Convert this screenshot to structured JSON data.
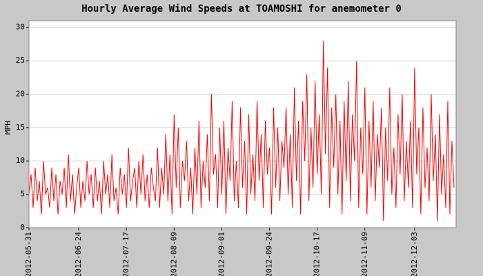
{
  "chart_data": {
    "type": "line",
    "title": "Hourly Average Wind Speeds at TOAMOSHI for anemometer 0",
    "y_label": "MPH",
    "color": "#ff0000",
    "grid": true,
    "xlim": [
      "2012-05-31",
      "2012-12-23"
    ],
    "xticks": [
      "2012-05-31",
      "2012-06-24",
      "2012-07-17",
      "2012-08-09",
      "2012-09-01",
      "2012-09-24",
      "2012-10-17",
      "2012-11-09",
      "2012-12-03"
    ],
    "ylim": [
      0,
      31
    ],
    "yticks": [
      0,
      5,
      10,
      15,
      20,
      25,
      30
    ],
    "x": [
      "2012-05-31",
      "2012-06-01",
      "2012-06-02",
      "2012-06-03",
      "2012-06-04",
      "2012-06-05",
      "2012-06-06",
      "2012-06-07",
      "2012-06-08",
      "2012-06-09",
      "2012-06-10",
      "2012-06-11",
      "2012-06-12",
      "2012-06-13",
      "2012-06-14",
      "2012-06-15",
      "2012-06-16",
      "2012-06-17",
      "2012-06-18",
      "2012-06-19",
      "2012-06-20",
      "2012-06-21",
      "2012-06-22",
      "2012-06-23",
      "2012-06-24",
      "2012-06-25",
      "2012-06-26",
      "2012-06-27",
      "2012-06-28",
      "2012-06-29",
      "2012-06-30",
      "2012-07-01",
      "2012-07-02",
      "2012-07-03",
      "2012-07-04",
      "2012-07-05",
      "2012-07-06",
      "2012-07-07",
      "2012-07-08",
      "2012-07-09",
      "2012-07-10",
      "2012-07-11",
      "2012-07-12",
      "2012-07-13",
      "2012-07-14",
      "2012-07-15",
      "2012-07-16",
      "2012-07-17",
      "2012-07-18",
      "2012-07-19",
      "2012-07-20",
      "2012-07-21",
      "2012-07-22",
      "2012-07-23",
      "2012-07-24",
      "2012-07-25",
      "2012-07-26",
      "2012-07-27",
      "2012-07-28",
      "2012-07-29",
      "2012-07-30",
      "2012-07-31",
      "2012-08-01",
      "2012-08-02",
      "2012-08-03",
      "2012-08-04",
      "2012-08-05",
      "2012-08-06",
      "2012-08-07",
      "2012-08-08",
      "2012-08-09",
      "2012-08-10",
      "2012-08-11",
      "2012-08-12",
      "2012-08-13",
      "2012-08-14",
      "2012-08-15",
      "2012-08-16",
      "2012-08-17",
      "2012-08-18",
      "2012-08-19",
      "2012-08-20",
      "2012-08-21",
      "2012-08-22",
      "2012-08-23",
      "2012-08-24",
      "2012-08-25",
      "2012-08-26",
      "2012-08-27",
      "2012-08-28",
      "2012-08-29",
      "2012-08-30",
      "2012-08-31",
      "2012-09-01",
      "2012-09-02",
      "2012-09-03",
      "2012-09-04",
      "2012-09-05",
      "2012-09-06",
      "2012-09-07",
      "2012-09-08",
      "2012-09-09",
      "2012-09-10",
      "2012-09-11",
      "2012-09-12",
      "2012-09-13",
      "2012-09-14",
      "2012-09-15",
      "2012-09-16",
      "2012-09-17",
      "2012-09-18",
      "2012-09-19",
      "2012-09-20",
      "2012-09-21",
      "2012-09-22",
      "2012-09-23",
      "2012-09-24",
      "2012-09-25",
      "2012-09-26",
      "2012-09-27",
      "2012-09-28",
      "2012-09-29",
      "2012-09-30",
      "2012-10-01",
      "2012-10-02",
      "2012-10-03",
      "2012-10-04",
      "2012-10-05",
      "2012-10-06",
      "2012-10-07",
      "2012-10-08",
      "2012-10-09",
      "2012-10-10",
      "2012-10-11",
      "2012-10-12",
      "2012-10-13",
      "2012-10-14",
      "2012-10-15",
      "2012-10-16",
      "2012-10-17",
      "2012-10-18",
      "2012-10-19",
      "2012-10-20",
      "2012-10-21",
      "2012-10-22",
      "2012-10-23",
      "2012-10-24",
      "2012-10-25",
      "2012-10-26",
      "2012-10-27",
      "2012-10-28",
      "2012-10-29",
      "2012-10-30",
      "2012-10-31",
      "2012-11-01",
      "2012-11-02",
      "2012-11-03",
      "2012-11-04",
      "2012-11-05",
      "2012-11-06",
      "2012-11-07",
      "2012-11-08",
      "2012-11-09",
      "2012-11-10",
      "2012-11-11",
      "2012-11-12",
      "2012-11-13",
      "2012-11-14",
      "2012-11-15",
      "2012-11-16",
      "2012-11-17",
      "2012-11-18",
      "2012-11-19",
      "2012-11-20",
      "2012-11-21",
      "2012-11-22",
      "2012-11-23",
      "2012-11-24",
      "2012-11-25",
      "2012-11-26",
      "2012-11-27",
      "2012-11-28",
      "2012-11-29",
      "2012-11-30",
      "2012-12-01",
      "2012-12-02",
      "2012-12-03",
      "2012-12-04",
      "2012-12-05",
      "2012-12-06",
      "2012-12-07",
      "2012-12-08",
      "2012-12-09",
      "2012-12-10",
      "2012-12-11",
      "2012-12-12",
      "2012-12-13",
      "2012-12-14",
      "2012-12-15",
      "2012-12-16",
      "2012-12-17",
      "2012-12-18",
      "2012-12-19",
      "2012-12-20",
      "2012-12-21",
      "2012-12-22"
    ],
    "values": [
      5,
      8,
      3,
      9,
      4,
      7,
      2,
      10,
      5,
      6,
      3,
      9,
      4,
      8,
      2,
      7,
      5,
      9,
      3,
      11,
      4,
      8,
      2,
      6,
      9,
      3,
      7,
      4,
      10,
      5,
      8,
      3,
      9,
      4,
      7,
      2,
      10,
      5,
      8,
      3,
      11,
      4,
      6,
      2,
      9,
      5,
      8,
      3,
      12,
      4,
      7,
      9,
      3,
      10,
      5,
      11,
      4,
      8,
      3,
      9,
      6,
      4,
      12,
      3,
      9,
      5,
      14,
      4,
      11,
      2,
      17,
      6,
      15,
      3,
      10,
      7,
      13,
      4,
      9,
      2,
      12,
      5,
      16,
      3,
      10,
      6,
      14,
      4,
      20,
      8,
      11,
      3,
      15,
      5,
      16,
      2,
      12,
      7,
      19,
      4,
      10,
      3,
      18,
      6,
      13,
      2,
      17,
      5,
      11,
      4,
      19,
      7,
      14,
      3,
      16,
      8,
      12,
      2,
      18,
      6,
      15,
      4,
      13,
      9,
      18,
      5,
      14,
      3,
      21,
      7,
      16,
      2,
      19,
      10,
      23,
      4,
      15,
      6,
      22,
      8,
      17,
      5,
      28,
      11,
      24,
      3,
      18,
      9,
      20,
      5,
      16,
      2,
      19,
      7,
      22,
      4,
      17,
      10,
      25,
      3,
      15,
      8,
      21,
      2,
      16,
      6,
      19,
      4,
      14,
      9,
      18,
      1,
      15,
      7,
      21,
      5,
      12,
      3,
      17,
      8,
      20,
      4,
      13,
      6,
      16,
      3,
      24,
      8,
      15,
      2,
      18,
      6,
      12,
      4,
      20,
      7,
      14,
      1,
      17,
      5,
      11,
      3,
      19,
      2,
      13,
      6
    ]
  }
}
